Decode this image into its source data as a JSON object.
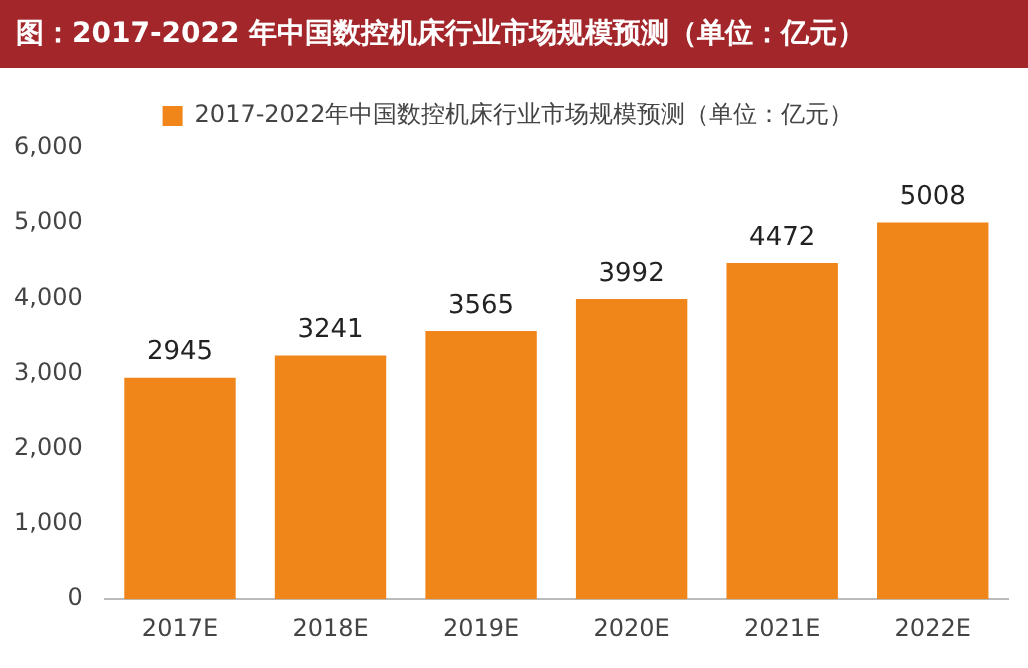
{
  "chart_data": {
    "type": "bar",
    "title": "图：2017-2022 年中国数控机床行业市场规模预测（单位：亿元）",
    "categories": [
      "2017E",
      "2018E",
      "2019E",
      "2020E",
      "2021E",
      "2022E"
    ],
    "series": [
      {
        "name": "2017-2022年中国数控机床行业市场规模预测（单位：亿元）",
        "color": "#f08519",
        "values": [
          2945,
          3241,
          3565,
          3992,
          4472,
          5008
        ]
      }
    ],
    "ylim": [
      0,
      6000
    ],
    "yticks": [
      {
        "value": 0,
        "label": "0"
      },
      {
        "value": 1000,
        "label": "1,000"
      },
      {
        "value": 2000,
        "label": "2,000"
      },
      {
        "value": 3000,
        "label": "3,000"
      },
      {
        "value": 4000,
        "label": "4,000"
      },
      {
        "value": 5000,
        "label": "5,000"
      },
      {
        "value": 6000,
        "label": "6,000"
      }
    ],
    "data_labels": true,
    "grid": false,
    "legend": "top"
  }
}
